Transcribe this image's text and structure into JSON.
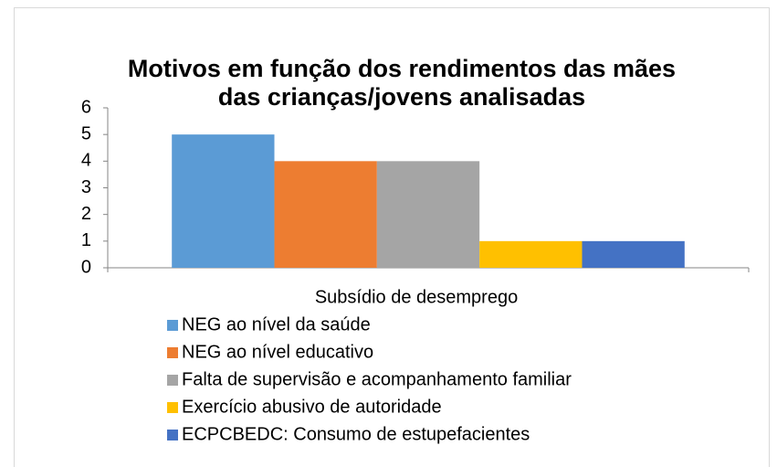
{
  "chart_data": {
    "type": "bar",
    "title": "Motivos em função dos rendimentos das mães das crianças/jovens analisadas",
    "categories": [
      "Subsídio de desemprego"
    ],
    "series": [
      {
        "name": "NEG ao nível da saúde",
        "color": "#5b9bd5",
        "values": [
          5
        ]
      },
      {
        "name": "NEG ao nível educativo",
        "color": "#ed7d31",
        "values": [
          4
        ]
      },
      {
        "name": "Falta de supervisão e acompanhamento familiar",
        "color": "#a5a5a5",
        "values": [
          4
        ]
      },
      {
        "name": "Exercício abusivo de autoridade",
        "color": "#ffc000",
        "values": [
          1
        ]
      },
      {
        "name": "ECPCBEDC: Consumo de estupefacientes",
        "color": "#4472c4",
        "values": [
          1
        ]
      }
    ],
    "ylim": [
      0,
      6
    ],
    "yticks": [
      0,
      1,
      2,
      3,
      4,
      5,
      6
    ],
    "grid": false,
    "legend": "bottom"
  }
}
